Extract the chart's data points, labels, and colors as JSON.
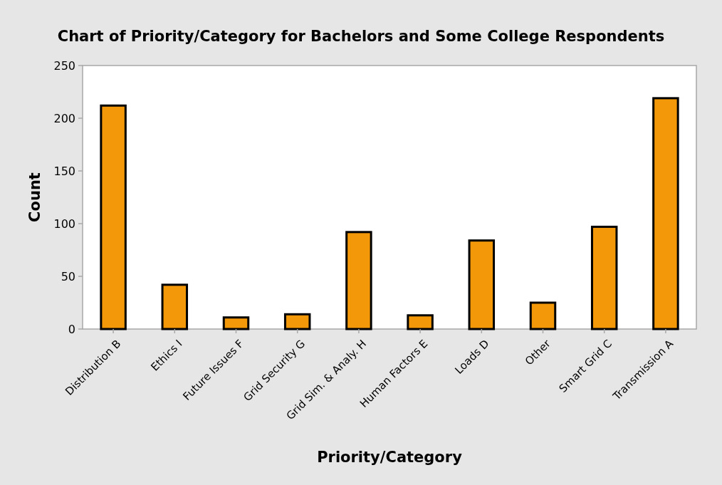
{
  "chart_data": {
    "type": "bar",
    "title": "Chart of Priority/Category for Bachelors and Some College Respondents",
    "xlabel": "Priority/Category",
    "ylabel": "Count",
    "categories": [
      "Distribution B",
      "Ethics I",
      "Future Issues F",
      "Grid Security G",
      "Grid Sim. & Analy. H",
      "Human Factors E",
      "Loads D",
      "Other",
      "Smart Grid C",
      "Transmission A"
    ],
    "values": [
      212,
      42,
      11,
      14,
      92,
      13,
      84,
      25,
      97,
      219
    ],
    "color": "#f39808",
    "ylim": [
      0,
      250
    ],
    "yticks": [
      0,
      50,
      100,
      150,
      200,
      250
    ]
  }
}
